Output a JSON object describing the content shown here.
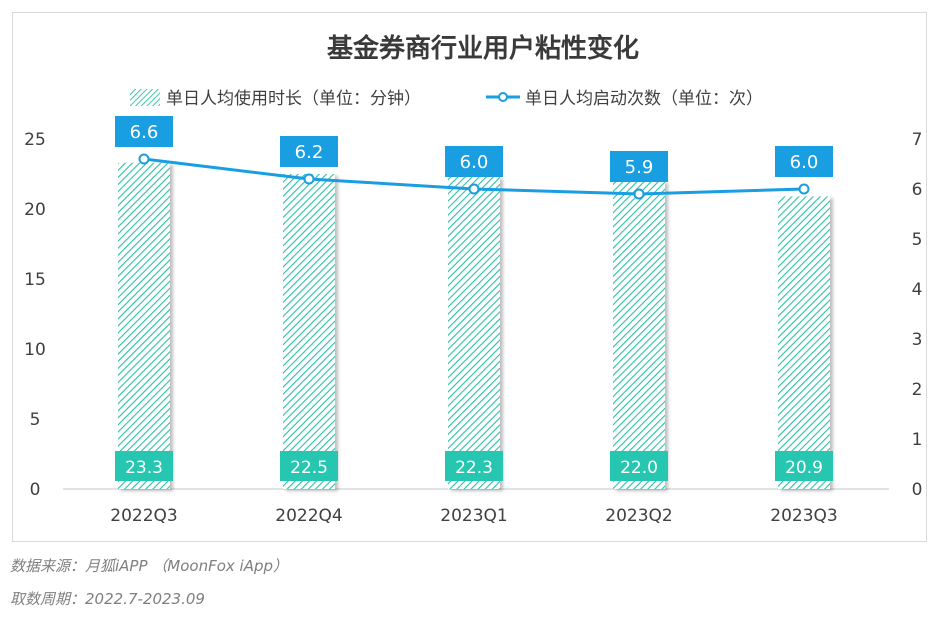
{
  "chart_data": {
    "type": "bar+line",
    "title": "基金券商行业用户粘性变化",
    "categories": [
      "2022Q3",
      "2022Q4",
      "2023Q1",
      "2023Q2",
      "2023Q3"
    ],
    "series": [
      {
        "name": "单日人均使用时长（单位：分钟）",
        "type": "bar",
        "axis": "left",
        "values": [
          23.3,
          22.5,
          22.3,
          22.0,
          20.9
        ],
        "labels": [
          "23.3",
          "22.5",
          "22.3",
          "22.0",
          "20.9"
        ],
        "color": "#2bbfa8"
      },
      {
        "name": "单日人均启动次数（单位：次）",
        "type": "line",
        "axis": "right",
        "values": [
          6.6,
          6.2,
          6.0,
          5.9,
          6.0
        ],
        "labels": [
          "6.6",
          "6.2",
          "6.0",
          "5.9",
          "6.0"
        ],
        "color": "#1a9ee2"
      }
    ],
    "y_left": {
      "min": 0,
      "max": 25,
      "ticks": [
        "0",
        "5",
        "10",
        "15",
        "20",
        "25"
      ]
    },
    "y_right": {
      "min": 0,
      "max": 7,
      "ticks": [
        "0",
        "1",
        "2",
        "3",
        "4",
        "5",
        "6",
        "7"
      ]
    },
    "grid": false,
    "legend_position": "top"
  },
  "source_note": "数据来源：月狐iAPP （MoonFox iApp）",
  "period_note": "取数周期：2022.7-2023.09"
}
